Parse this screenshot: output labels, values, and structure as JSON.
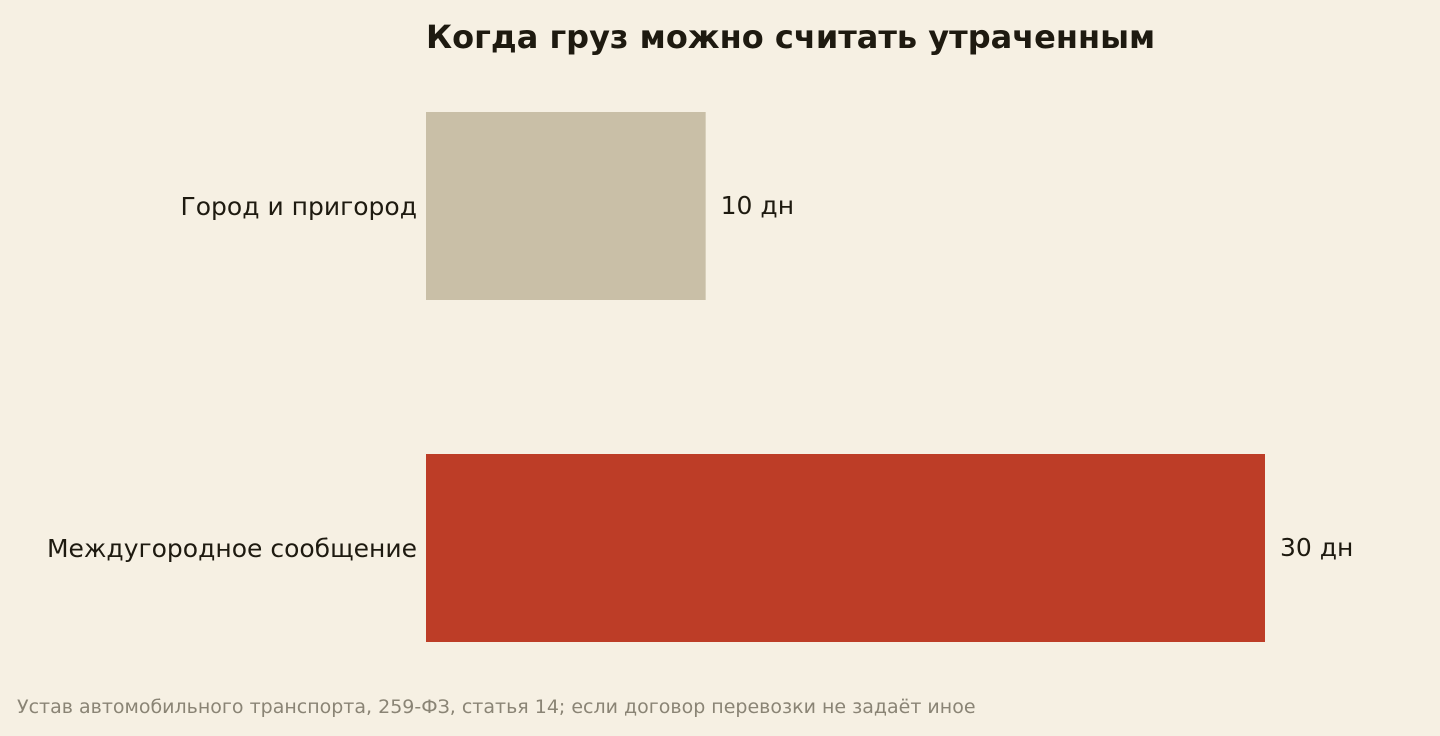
{
  "chart_data": {
    "type": "bar",
    "orientation": "horizontal",
    "title": "Когда груз можно считать утраченным",
    "categories": [
      "Город и пригород",
      "Междугородное сообщение"
    ],
    "values": [
      10,
      30
    ],
    "value_labels": [
      "10 дн",
      "30 дн"
    ],
    "colors": [
      "#c9bfa7",
      "#bd3d27"
    ],
    "xlabel": "",
    "ylabel": "",
    "xlim": [
      0,
      30
    ],
    "grid": false,
    "legend": "none"
  },
  "footer": {
    "source": "Устав автомобильного транспорта, 259-ФЗ, статья 14; если договор перевозки не задаёт иное"
  }
}
